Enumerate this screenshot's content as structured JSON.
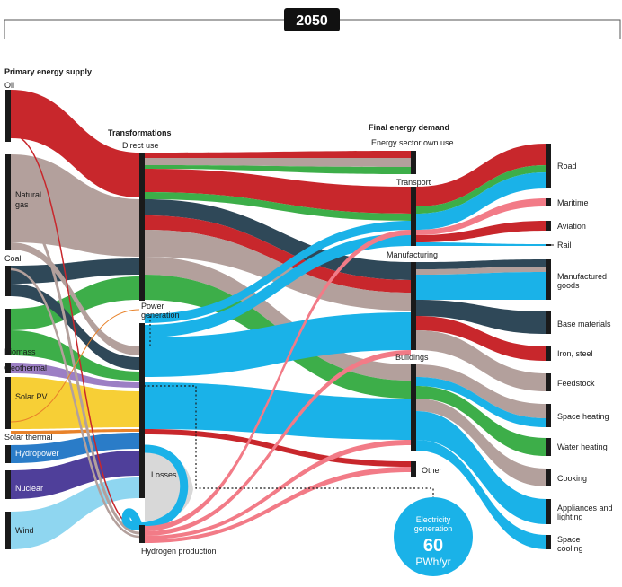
{
  "year": "2050",
  "headers": {
    "primary": "Primary energy supply",
    "transformations": "Transformations",
    "final": "Final energy demand"
  },
  "sources": [
    {
      "label": "Oil",
      "color": "#c8272c"
    },
    {
      "label": "Natural gas",
      "color": "#b3a09c"
    },
    {
      "label": "Coal",
      "color": "#2f4858"
    },
    {
      "label": "Biomass",
      "color": "#3dae49"
    },
    {
      "label": "Geothermal",
      "color": "#9c7fc4"
    },
    {
      "label": "Solar PV",
      "color": "#f7cf36"
    },
    {
      "label": "Solar thermal",
      "color": "#e8822a"
    },
    {
      "label": "Hydropower",
      "color": "#2a7cc8"
    },
    {
      "label": "Nuclear",
      "color": "#4f3f9a"
    },
    {
      "label": "Wind",
      "color": "#8fd6f0"
    }
  ],
  "transformations": [
    {
      "label": "Direct use"
    },
    {
      "label": "Power generation"
    },
    {
      "label": "Losses"
    },
    {
      "label": "Hydrogen production"
    }
  ],
  "sectors": [
    {
      "label": "Energy sector own use"
    },
    {
      "label": "Transport"
    },
    {
      "label": "Manufacturing"
    },
    {
      "label": "Buildings"
    },
    {
      "label": "Other"
    }
  ],
  "end_uses": [
    {
      "label": "Road"
    },
    {
      "label": "Maritime"
    },
    {
      "label": "Aviation"
    },
    {
      "label": "Rail"
    },
    {
      "label": "Manufactured goods"
    },
    {
      "label": "Base materials"
    },
    {
      "label": "Iron, steel"
    },
    {
      "label": "Feedstock"
    },
    {
      "label": "Space heating"
    },
    {
      "label": "Water heating"
    },
    {
      "label": "Cooking"
    },
    {
      "label": "Appliances and lighting"
    },
    {
      "label": "Space cooling"
    }
  ],
  "callout": {
    "line1": "Electricity",
    "line2": "generation",
    "value": "60",
    "unit": "PWh/yr"
  },
  "colors": {
    "electricity": "#1ab2e8",
    "hydrogen": "#f27b87"
  }
}
